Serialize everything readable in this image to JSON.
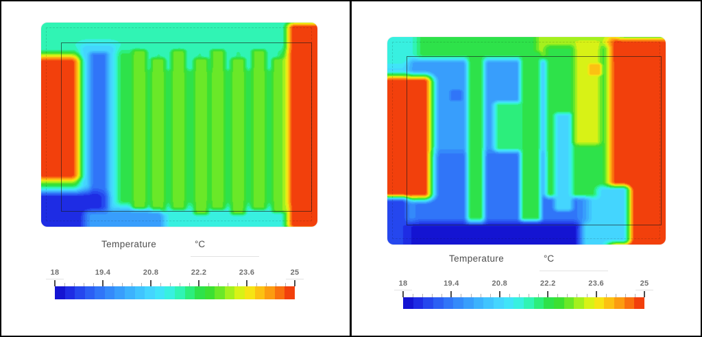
{
  "window": {
    "background": "#ffffff",
    "border_color": "#000000"
  },
  "chart_data": {
    "type": "heatmap",
    "unit": "°C",
    "scale": {
      "min": 18,
      "max": 25,
      "levels": 24,
      "tick_labels": [
        "18",
        "19.4",
        "20.8",
        "22.2",
        "23.6",
        "25"
      ],
      "minor_ticks_per_interval": 4
    },
    "palette": [
      "#1414d2",
      "#1e2ce4",
      "#2547ee",
      "#2b5ff4",
      "#3075f8",
      "#348afa",
      "#389efc",
      "#3cb2fd",
      "#40c4fe",
      "#44d5fe",
      "#40e4f8",
      "#38f0e0",
      "#30f4b4",
      "#2cee7c",
      "#2ee24a",
      "#3ce032",
      "#6ae828",
      "#a4f01e",
      "#d8f216",
      "#f6e414",
      "#fcc112",
      "#fc9c10",
      "#f9700e",
      "#f2400c"
    ],
    "panels": [
      {
        "legend": {
          "title": "Temperature",
          "unit": "°C"
        },
        "base_temp": 22.2,
        "features": [
          {
            "name": "top-edge-band",
            "shape": "rect",
            "x0": 0,
            "x1": 0.96,
            "y0": 0,
            "y1": 0.105,
            "temp": 21.5,
            "soft": 0.06
          },
          {
            "name": "bottom-edge-band",
            "shape": "rect",
            "x0": 0.26,
            "x1": 0.95,
            "y0": 0.925,
            "y1": 1,
            "temp": 21.4,
            "soft": 0.06
          },
          {
            "name": "bottom-left-edge",
            "shape": "rect",
            "x0": 0,
            "x1": 0.3,
            "y0": 0.93,
            "y1": 1,
            "temp": 20.6,
            "soft": 0.06
          },
          {
            "name": "inlet-cyan-halo",
            "shape": "rect",
            "x0": 0.165,
            "x1": 0.245,
            "y0": 0.13,
            "y1": 0.97,
            "temp": 20.7,
            "soft": 0.05
          },
          {
            "name": "inlet-cold-loop",
            "shape": "rect",
            "x0": 0.19,
            "x1": 0.225,
            "y0": 0.16,
            "y1": 0.94,
            "temp": 19.4,
            "soft": 0.03
          },
          {
            "name": "u-bend-arch-1",
            "shape": "ellipse",
            "cx": 0.389,
            "cy": 0.165,
            "rx": 0.018,
            "ry": 0.05,
            "temp": 21.6,
            "soft": 0.03
          },
          {
            "name": "u-bend-arch-2",
            "shape": "ellipse",
            "cx": 0.459,
            "cy": 0.165,
            "rx": 0.018,
            "ry": 0.05,
            "temp": 21.6,
            "soft": 0.03
          },
          {
            "name": "u-bend-arch-3",
            "shape": "ellipse",
            "cx": 0.537,
            "cy": 0.165,
            "rx": 0.018,
            "ry": 0.05,
            "temp": 21.6,
            "soft": 0.03
          },
          {
            "name": "u-bend-arch-4",
            "shape": "ellipse",
            "cx": 0.608,
            "cy": 0.165,
            "rx": 0.018,
            "ry": 0.05,
            "temp": 21.6,
            "soft": 0.03
          },
          {
            "name": "u-bend-arch-5",
            "shape": "ellipse",
            "cx": 0.675,
            "cy": 0.165,
            "rx": 0.018,
            "ry": 0.05,
            "temp": 21.6,
            "soft": 0.03
          },
          {
            "name": "u-bend-arch-6",
            "shape": "ellipse",
            "cx": 0.75,
            "cy": 0.165,
            "rx": 0.018,
            "ry": 0.05,
            "temp": 21.6,
            "soft": 0.03
          },
          {
            "name": "u-bend-arch-7",
            "shape": "ellipse",
            "cx": 0.824,
            "cy": 0.165,
            "rx": 0.018,
            "ry": 0.05,
            "temp": 21.6,
            "soft": 0.03
          },
          {
            "name": "pipe-stripe-1",
            "shape": "rect",
            "x0": 0.343,
            "x1": 0.367,
            "y0": 0.145,
            "y1": 0.9,
            "temp": 22.8,
            "soft": 0.027
          },
          {
            "name": "pipe-stripe-2",
            "shape": "rect",
            "x0": 0.41,
            "x1": 0.434,
            "y0": 0.185,
            "y1": 0.925,
            "temp": 22.8,
            "soft": 0.027
          },
          {
            "name": "pipe-stripe-3",
            "shape": "rect",
            "x0": 0.484,
            "x1": 0.508,
            "y0": 0.145,
            "y1": 0.9,
            "temp": 22.8,
            "soft": 0.027
          },
          {
            "name": "pipe-stripe-4",
            "shape": "rect",
            "x0": 0.566,
            "x1": 0.59,
            "y0": 0.185,
            "y1": 0.925,
            "temp": 22.8,
            "soft": 0.027
          },
          {
            "name": "pipe-stripe-5",
            "shape": "rect",
            "x0": 0.626,
            "x1": 0.65,
            "y0": 0.145,
            "y1": 0.9,
            "temp": 22.8,
            "soft": 0.027
          },
          {
            "name": "pipe-stripe-6",
            "shape": "rect",
            "x0": 0.7,
            "x1": 0.724,
            "y0": 0.185,
            "y1": 0.925,
            "temp": 22.8,
            "soft": 0.027
          },
          {
            "name": "pipe-stripe-7",
            "shape": "rect",
            "x0": 0.775,
            "x1": 0.799,
            "y0": 0.145,
            "y1": 0.9,
            "temp": 22.8,
            "soft": 0.027
          },
          {
            "name": "pipe-stripe-8",
            "shape": "rect",
            "x0": 0.849,
            "x1": 0.873,
            "y0": 0.185,
            "y1": 0.915,
            "temp": 22.8,
            "soft": 0.027
          },
          {
            "name": "left-hot-band",
            "shape": "rect",
            "x0": 0.008,
            "x1": 0.105,
            "y0": 0.195,
            "y1": 0.74,
            "temp": 25,
            "soft": 0.065
          },
          {
            "name": "bottom-left-cold-corner",
            "shape": "rect",
            "x0": 0,
            "x1": 0.195,
            "y0": 0.86,
            "y1": 1,
            "temp": 18.3,
            "soft": 0.07
          },
          {
            "name": "bottom-cold-tail",
            "shape": "rect",
            "x0": 0.18,
            "x1": 0.42,
            "y0": 0.945,
            "y1": 1,
            "temp": 19.8,
            "soft": 0.05
          },
          {
            "name": "right-hot-band",
            "shape": "rect",
            "x0": 0.915,
            "x1": 1,
            "y0": 0.025,
            "y1": 0.985,
            "temp": 25,
            "soft": 0.05
          }
        ]
      },
      {
        "legend": {
          "title": "Temperature",
          "unit": "°C"
        },
        "base_temp": 20.9,
        "features": [
          {
            "name": "top-left-turquoise",
            "shape": "rect",
            "x0": 0,
            "x1": 0.22,
            "y0": 0,
            "y1": 0.105,
            "temp": 21.4,
            "soft": 0.05
          },
          {
            "name": "top-green-band",
            "shape": "rect",
            "x0": 0.13,
            "x1": 0.62,
            "y0": 0,
            "y1": 0.1,
            "temp": 22.2,
            "soft": 0.05
          },
          {
            "name": "top-yellow-band",
            "shape": "rect",
            "x0": 0.56,
            "x1": 0.8,
            "y0": 0,
            "y1": 0.095,
            "temp": 23.2,
            "soft": 0.05
          },
          {
            "name": "interior-cool-pool",
            "shape": "rect",
            "x0": 0.1,
            "x1": 0.7,
            "y0": 0.13,
            "y1": 0.87,
            "temp": 19.9,
            "soft": 0.05
          },
          {
            "name": "interior-lower-pool",
            "shape": "rect",
            "x0": 0.12,
            "x1": 0.66,
            "y0": 0.58,
            "y1": 0.88,
            "temp": 19.3,
            "soft": 0.06
          },
          {
            "name": "cold-dot",
            "shape": "ellipse",
            "cx": 0.246,
            "cy": 0.28,
            "rx": 0.012,
            "ry": 0.016,
            "temp": 19.3,
            "soft": 0.02
          },
          {
            "name": "warm-finger-1",
            "shape": "rect",
            "x0": 0.3,
            "x1": 0.332,
            "y0": 0.085,
            "y1": 0.925,
            "temp": 22.2,
            "soft": 0.03
          },
          {
            "name": "mid-green-patch",
            "shape": "rect",
            "x0": 0.4,
            "x1": 0.47,
            "y0": 0.33,
            "y1": 0.53,
            "temp": 21.9,
            "soft": 0.035
          },
          {
            "name": "warm-finger-2",
            "shape": "rect",
            "x0": 0.49,
            "x1": 0.537,
            "y0": 0.085,
            "y1": 0.875,
            "temp": 22.2,
            "soft": 0.028
          },
          {
            "name": "warm-green-mass",
            "shape": "rect",
            "x0": 0.585,
            "x1": 0.805,
            "y0": 0.06,
            "y1": 0.75,
            "temp": 22.3,
            "soft": 0.04
          },
          {
            "name": "mass-cyan-notch",
            "shape": "rect",
            "x0": 0.615,
            "x1": 0.648,
            "y0": 0.38,
            "y1": 0.82,
            "temp": 20.9,
            "soft": 0.03
          },
          {
            "name": "yellow-streak",
            "shape": "rect",
            "x0": 0.688,
            "x1": 0.748,
            "y0": 0.04,
            "y1": 0.5,
            "temp": 23.4,
            "soft": 0.035
          },
          {
            "name": "hot-dot",
            "shape": "ellipse",
            "cx": 0.745,
            "cy": 0.155,
            "rx": 0.013,
            "ry": 0.018,
            "temp": 24.0,
            "soft": 0.02
          },
          {
            "name": "left-hot-band",
            "shape": "rect",
            "x0": 0.006,
            "x1": 0.13,
            "y0": 0.215,
            "y1": 0.75,
            "temp": 25,
            "soft": 0.06
          },
          {
            "name": "bottom-cold-band",
            "shape": "rect",
            "x0": 0,
            "x1": 0.67,
            "y0": 0.915,
            "y1": 1,
            "temp": 18.2,
            "soft": 0.05
          },
          {
            "name": "bottom-left-cold",
            "shape": "rect",
            "x0": 0,
            "x1": 0.05,
            "y0": 0.8,
            "y1": 1,
            "temp": 18.6,
            "soft": 0.05
          },
          {
            "name": "right-hot-block",
            "shape": "rect",
            "x0": 0.825,
            "x1": 1,
            "y0": 0.03,
            "y1": 1,
            "temp": 25,
            "soft": 0.06
          },
          {
            "name": "bottom-right-notch",
            "shape": "rect",
            "x0": 0.775,
            "x1": 0.845,
            "y0": 0.74,
            "y1": 0.97,
            "temp": 20.8,
            "soft": 0.045
          }
        ]
      }
    ]
  }
}
